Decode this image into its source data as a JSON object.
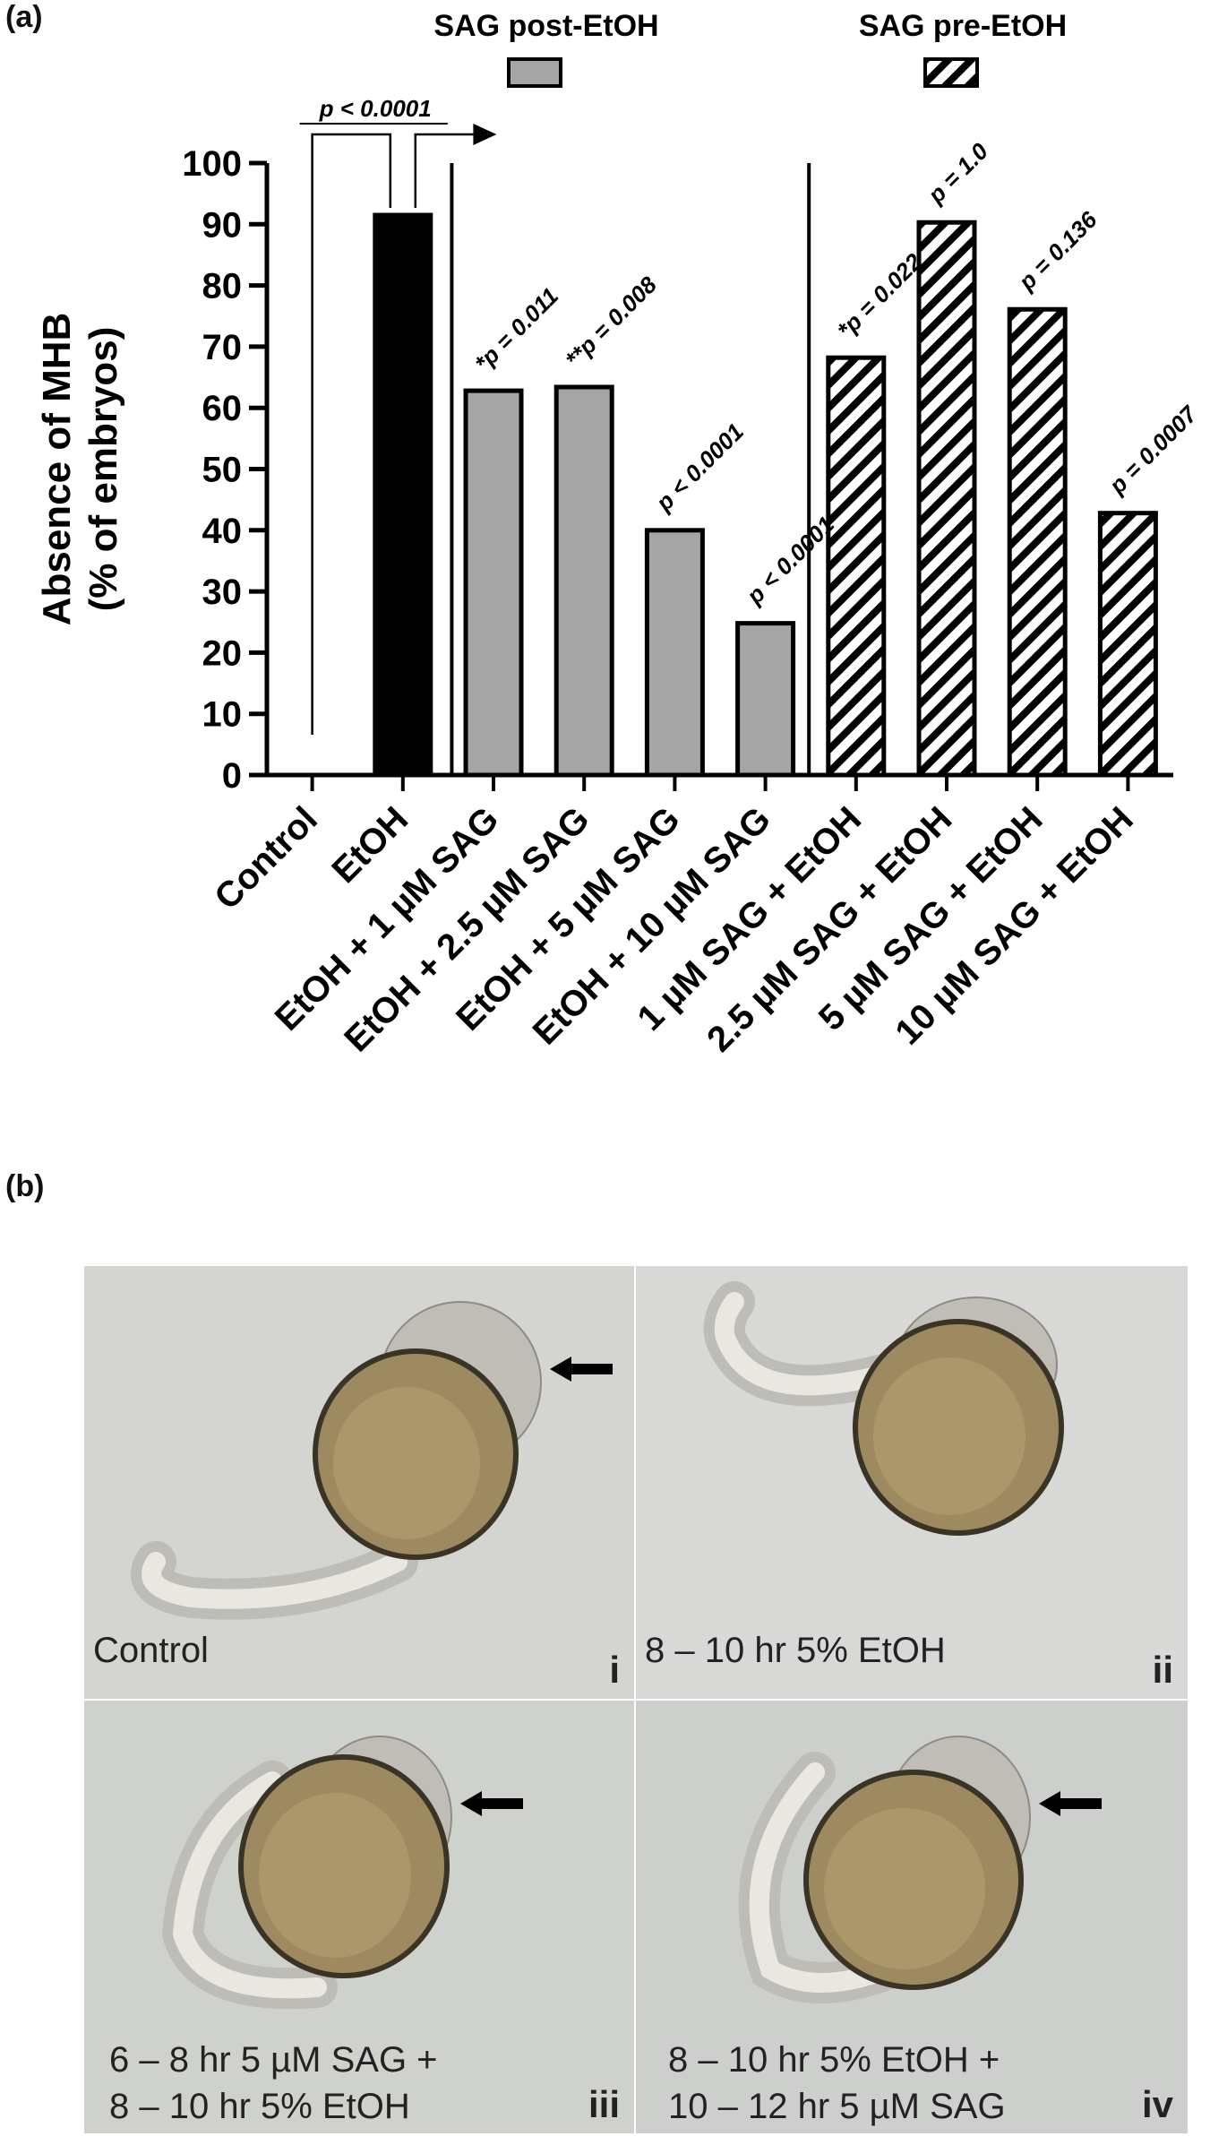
{
  "panel_a_label": "(a)",
  "panel_b_label": "(b)",
  "chart_data": {
    "type": "bar",
    "ylabel": "Absence of MHB (% of embryos)",
    "ylabel_lines": [
      "Absence of MHB",
      "(% of embryos)"
    ],
    "ylim": [
      0,
      100
    ],
    "yticks": [
      0,
      10,
      20,
      30,
      40,
      50,
      60,
      70,
      80,
      90,
      100
    ],
    "legend": {
      "position": "top",
      "entries": [
        {
          "label": "SAG post-EtOH",
          "fill": "gray"
        },
        {
          "label": "SAG pre-EtOH",
          "fill": "hatched"
        }
      ]
    },
    "categories": [
      "Control",
      "EtOH",
      "EtOH + 1 µM SAG",
      "EtOH + 2.5 µM SAG",
      "EtOH + 5 µM SAG",
      "EtOH + 10 µM SAG",
      "1 µM SAG + EtOH",
      "2.5 µM SAG + EtOH",
      "5 µM SAG + EtOH",
      "10 µM SAG + EtOH"
    ],
    "values": [
      0,
      91.5,
      62.8,
      63.4,
      40,
      24.8,
      68.2,
      90.3,
      76.1,
      42.8
    ],
    "fills": [
      "none",
      "black",
      "gray",
      "gray",
      "gray",
      "gray",
      "hatched",
      "hatched",
      "hatched",
      "hatched"
    ],
    "pvalue_labels": [
      "",
      "",
      "*p = 0.011",
      "**p = 0.008",
      "p < 0.0001",
      "p < 0.0001",
      "*p = 0.022",
      "p = 1.0",
      "p = 0.136",
      "p = 0.0007"
    ],
    "bracket_label": "p < 0.0001",
    "colors": {
      "black": "#000000",
      "gray": "#a5a5a5",
      "hatch_line": "#000000"
    }
  },
  "photos": [
    {
      "caption": "Control",
      "numeral": "i",
      "arrow": true,
      "bg": "#d4d5d1"
    },
    {
      "caption": "8 – 10 hr 5% EtOH",
      "numeral": "ii",
      "arrow": false,
      "bg": "#d8d9d6"
    },
    {
      "caption": "6 – 8 hr 5 µM SAG +\n8 – 10 hr 5% EtOH",
      "numeral": "iii",
      "arrow": true,
      "bg": "#cfd1cd"
    },
    {
      "caption": "8 – 10 hr 5% EtOH +\n10 – 12 hr 5 µM SAG",
      "numeral": "iv",
      "arrow": true,
      "bg": "#cdcfcc"
    }
  ]
}
